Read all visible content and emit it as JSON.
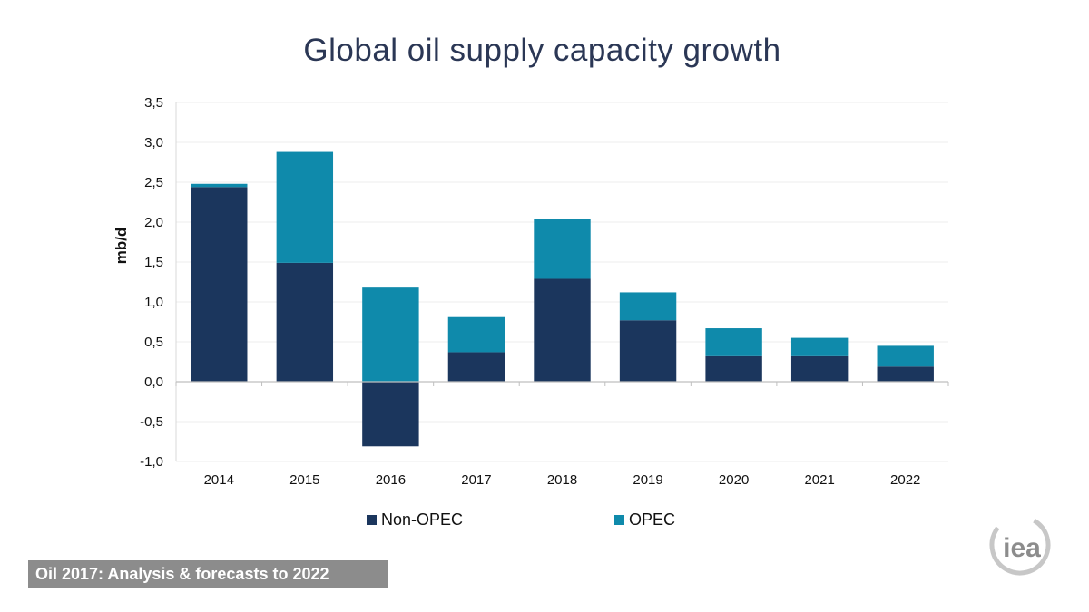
{
  "chart_data": {
    "type": "bar",
    "stacked": true,
    "title": "Global oil supply capacity growth",
    "xlabel": "",
    "ylabel": "mb/d",
    "ylim": [
      -1.0,
      3.5
    ],
    "yticks": [
      "-1,0",
      "-0,5",
      "0,0",
      "0,5",
      "1,0",
      "1,5",
      "2,0",
      "2,5",
      "3,0",
      "3,5"
    ],
    "ytick_values": [
      -1.0,
      -0.5,
      0.0,
      0.5,
      1.0,
      1.5,
      2.0,
      2.5,
      3.0,
      3.5
    ],
    "categories": [
      "2014",
      "2015",
      "2016",
      "2017",
      "2018",
      "2019",
      "2020",
      "2021",
      "2022"
    ],
    "series": [
      {
        "name": "Non-OPEC",
        "color": "#1b365d",
        "values": [
          2.44,
          1.49,
          -0.81,
          0.37,
          1.29,
          0.77,
          0.32,
          0.32,
          0.19
        ]
      },
      {
        "name": "OPEC",
        "color": "#0f8aab",
        "values": [
          0.04,
          1.39,
          1.18,
          0.44,
          0.75,
          0.35,
          0.35,
          0.23,
          0.26
        ]
      }
    ],
    "legend_position": "bottom",
    "grid": true
  },
  "footer": {
    "text": "Oil 2017:  Analysis & forecasts to 2022"
  },
  "logo": {
    "text": "iea"
  }
}
